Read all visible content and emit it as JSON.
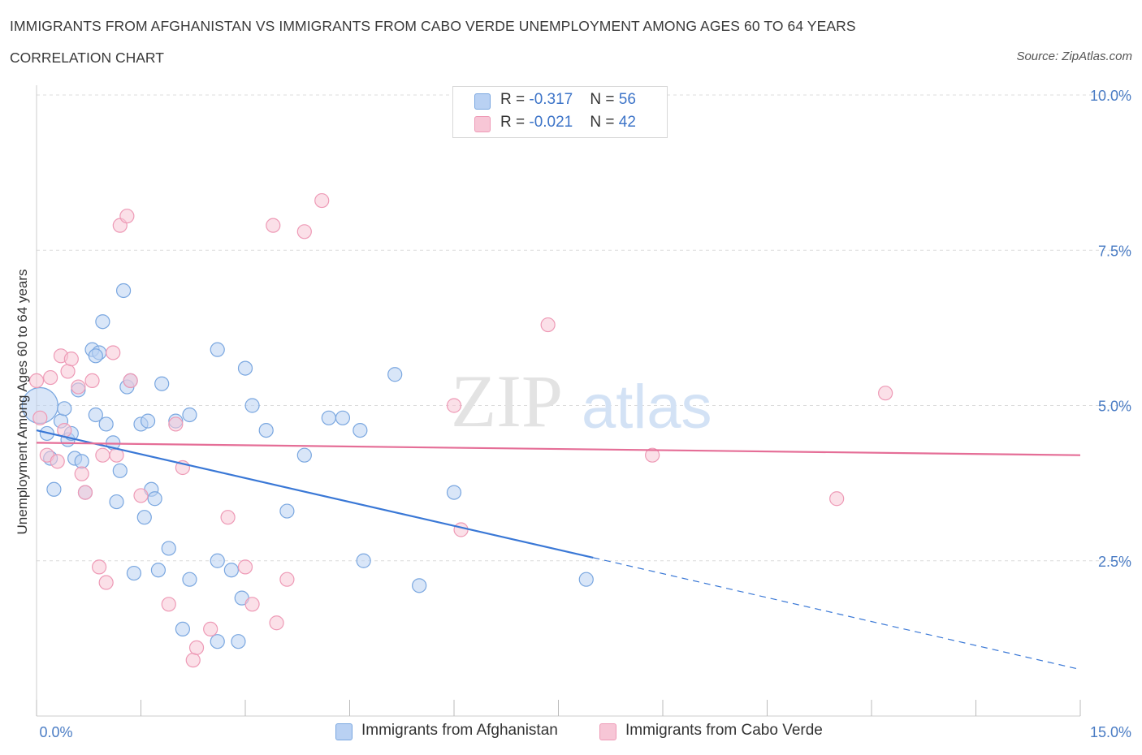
{
  "header": {
    "title": "IMMIGRANTS FROM AFGHANISTAN VS IMMIGRANTS FROM CABO VERDE UNEMPLOYMENT AMONG AGES 60 TO 64 YEARS",
    "subtitle": "CORRELATION CHART",
    "source": "Source: ZipAtlas.com"
  },
  "watermark": {
    "zip": "ZIP",
    "atlas": "atlas"
  },
  "legend": {
    "rows": [
      {
        "r_label": "R = ",
        "r_value": "-0.317",
        "n_label": "N = ",
        "n_value": "56"
      },
      {
        "r_label": "R = ",
        "r_value": "-0.021",
        "n_label": "N = ",
        "n_value": "42"
      }
    ]
  },
  "colors": {
    "afghanistan_fill": "#b9d1f3",
    "afghanistan_stroke": "#7aa7e0",
    "afghanistan_line": "#3a78d6",
    "caboverde_fill": "#f7c6d6",
    "caboverde_stroke": "#ee9ab6",
    "caboverde_line": "#e56e97",
    "grid": "#dcdcdc",
    "tick_label": "#4a7cc4"
  },
  "chart_data": {
    "type": "scatter",
    "title": "IMMIGRANTS FROM AFGHANISTAN VS IMMIGRANTS FROM CABO VERDE UNEMPLOYMENT AMONG AGES 60 TO 64 YEARS",
    "xlabel": "",
    "ylabel": "Unemployment Among Ages 60 to 64 years",
    "xlim": [
      0,
      15
    ],
    "ylim": [
      0,
      10
    ],
    "x_tick_labels": [
      "0.0%",
      "15.0%"
    ],
    "y_ticks": [
      2.5,
      5.0,
      7.5,
      10.0
    ],
    "y_tick_labels": [
      "2.5%",
      "5.0%",
      "7.5%",
      "10.0%"
    ],
    "grid": true,
    "legend_position": "top-center",
    "series": [
      {
        "name": "Immigrants from Afghanistan",
        "color": "#b9d1f3",
        "trend": {
          "x": [
            0.0,
            8.0
          ],
          "y": [
            4.6,
            2.55
          ],
          "dashed_extension": {
            "x": [
              8.0,
              15.0
            ],
            "y": [
              2.55,
              0.75
            ]
          }
        },
        "points": [
          [
            0.05,
            5.0
          ],
          [
            0.15,
            4.55
          ],
          [
            0.2,
            4.15
          ],
          [
            0.25,
            3.65
          ],
          [
            0.35,
            4.75
          ],
          [
            0.4,
            4.95
          ],
          [
            0.45,
            4.45
          ],
          [
            0.5,
            4.55
          ],
          [
            0.55,
            4.15
          ],
          [
            0.6,
            5.25
          ],
          [
            0.65,
            4.1
          ],
          [
            0.7,
            3.6
          ],
          [
            0.8,
            5.9
          ],
          [
            0.85,
            4.85
          ],
          [
            0.9,
            5.85
          ],
          [
            0.95,
            6.35
          ],
          [
            1.0,
            4.7
          ],
          [
            1.1,
            4.4
          ],
          [
            1.15,
            3.45
          ],
          [
            1.2,
            3.95
          ],
          [
            1.25,
            6.85
          ],
          [
            1.3,
            5.3
          ],
          [
            1.35,
            5.4
          ],
          [
            1.4,
            2.3
          ],
          [
            1.5,
            4.7
          ],
          [
            1.55,
            3.2
          ],
          [
            1.6,
            4.75
          ],
          [
            1.65,
            3.65
          ],
          [
            1.7,
            3.5
          ],
          [
            1.75,
            2.35
          ],
          [
            1.8,
            5.35
          ],
          [
            1.9,
            2.7
          ],
          [
            2.0,
            4.75
          ],
          [
            2.1,
            1.4
          ],
          [
            2.2,
            2.2
          ],
          [
            2.2,
            4.85
          ],
          [
            2.6,
            2.5
          ],
          [
            2.6,
            1.2
          ],
          [
            2.6,
            5.9
          ],
          [
            2.8,
            2.35
          ],
          [
            2.9,
            1.2
          ],
          [
            2.95,
            1.9
          ],
          [
            3.0,
            5.6
          ],
          [
            3.1,
            5.0
          ],
          [
            3.3,
            4.6
          ],
          [
            3.6,
            3.3
          ],
          [
            3.85,
            4.2
          ],
          [
            4.2,
            4.8
          ],
          [
            4.4,
            4.8
          ],
          [
            4.65,
            4.6
          ],
          [
            4.7,
            2.5
          ],
          [
            5.15,
            5.5
          ],
          [
            5.5,
            2.1
          ],
          [
            6.0,
            3.6
          ],
          [
            7.9,
            2.2
          ],
          [
            0.85,
            5.8
          ]
        ]
      },
      {
        "name": "Immigrants from Cabo Verde",
        "color": "#f7c6d6",
        "trend": {
          "x": [
            0.0,
            15.0
          ],
          "y": [
            4.4,
            4.2
          ]
        },
        "points": [
          [
            0.0,
            5.4
          ],
          [
            0.05,
            4.8
          ],
          [
            0.15,
            4.2
          ],
          [
            0.2,
            5.45
          ],
          [
            0.3,
            4.1
          ],
          [
            0.35,
            5.8
          ],
          [
            0.4,
            4.6
          ],
          [
            0.45,
            5.55
          ],
          [
            0.5,
            5.75
          ],
          [
            0.6,
            5.3
          ],
          [
            0.65,
            3.9
          ],
          [
            0.7,
            3.6
          ],
          [
            0.8,
            5.4
          ],
          [
            0.9,
            2.4
          ],
          [
            0.95,
            4.2
          ],
          [
            1.0,
            2.15
          ],
          [
            1.1,
            5.85
          ],
          [
            1.15,
            4.2
          ],
          [
            1.2,
            7.9
          ],
          [
            1.3,
            8.05
          ],
          [
            1.35,
            5.4
          ],
          [
            1.5,
            3.55
          ],
          [
            1.9,
            1.8
          ],
          [
            2.0,
            4.7
          ],
          [
            2.1,
            4.0
          ],
          [
            2.25,
            0.9
          ],
          [
            2.3,
            1.1
          ],
          [
            2.5,
            1.4
          ],
          [
            2.75,
            3.2
          ],
          [
            3.0,
            2.4
          ],
          [
            3.1,
            1.8
          ],
          [
            3.4,
            7.9
          ],
          [
            3.45,
            1.5
          ],
          [
            3.6,
            2.2
          ],
          [
            3.85,
            7.8
          ],
          [
            4.1,
            8.3
          ],
          [
            6.0,
            5.0
          ],
          [
            6.1,
            3.0
          ],
          [
            7.35,
            6.3
          ],
          [
            8.85,
            4.2
          ],
          [
            11.5,
            3.5
          ],
          [
            12.2,
            5.2
          ]
        ]
      }
    ]
  }
}
